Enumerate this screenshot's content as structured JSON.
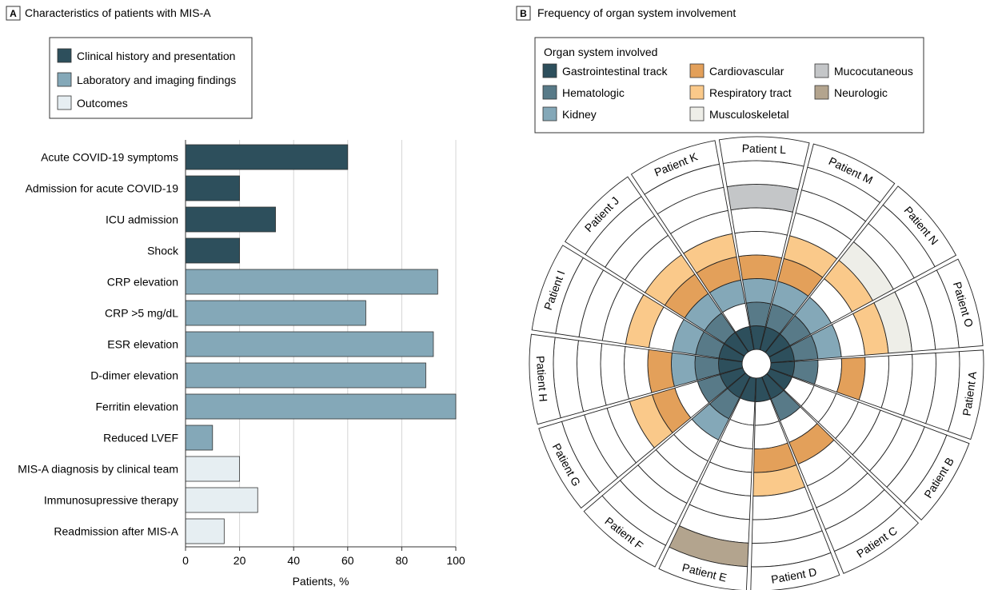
{
  "panel_a": {
    "letter": "A",
    "title": "Characteristics of patients with MIS-A",
    "legend": [
      {
        "label": "Clinical history and presentation",
        "color": "#2d4f5c"
      },
      {
        "label": "Laboratory and imaging findings",
        "color": "#84a8b8"
      },
      {
        "label": "Outcomes",
        "color": "#e6eef2"
      }
    ]
  },
  "panel_b": {
    "letter": "B",
    "title": "Frequency of organ system involvement",
    "legend_title": "Organ system involved"
  },
  "chart_data": [
    {
      "type": "bar",
      "orientation": "horizontal",
      "categories": [
        "Acute COVID-19 symptoms",
        "Admission for acute COVID-19",
        "ICU admission",
        "Shock",
        "CRP elevation",
        "CRP >5 mg/dL",
        "ESR elevation",
        "D-dimer elevation",
        "Ferritin elevation",
        "Reduced LVEF",
        "MIS-A diagnosis by  clinical team",
        "Immunosupressive therapy",
        "Readmission after MIS-A"
      ],
      "values": [
        60,
        20,
        33.3,
        20,
        93.3,
        66.7,
        91.7,
        88.9,
        100,
        10,
        20,
        26.7,
        14.3
      ],
      "groups": [
        0,
        0,
        0,
        0,
        1,
        1,
        1,
        1,
        1,
        1,
        2,
        2,
        2
      ],
      "xlabel": "Patients, %",
      "xlim": [
        0,
        100
      ],
      "xticks": [
        0,
        20,
        40,
        60,
        80,
        100
      ],
      "grid": true
    },
    {
      "type": "radial",
      "rings": [
        {
          "name": "Gastrointestinal track",
          "color": "#2d4f5c"
        },
        {
          "name": "Hematologic",
          "color": "#587a88"
        },
        {
          "name": "Kidney",
          "color": "#84a8b8"
        },
        {
          "name": "Cardiovascular",
          "color": "#e3a05a"
        },
        {
          "name": "Respiratory tract",
          "color": "#fac98a"
        },
        {
          "name": "Musculoskeletal",
          "color": "#eeeee8"
        },
        {
          "name": "Mucocutaneous",
          "color": "#c4c6c8"
        },
        {
          "name": "Neurologic",
          "color": "#b3a48e"
        }
      ],
      "patients": [
        {
          "label": "Patient A",
          "involved": [
            1,
            1,
            0,
            1,
            0,
            0,
            0,
            0
          ]
        },
        {
          "label": "Patient B",
          "involved": [
            1,
            0,
            0,
            0,
            0,
            0,
            0,
            0
          ]
        },
        {
          "label": "Patient C",
          "involved": [
            1,
            1,
            0,
            1,
            0,
            0,
            0,
            0
          ]
        },
        {
          "label": "Patient D",
          "involved": [
            1,
            0,
            0,
            1,
            1,
            0,
            0,
            0
          ]
        },
        {
          "label": "Patient E",
          "involved": [
            1,
            0,
            0,
            0,
            0,
            0,
            0,
            1
          ]
        },
        {
          "label": "Patient F",
          "involved": [
            1,
            1,
            1,
            0,
            0,
            0,
            0,
            0
          ]
        },
        {
          "label": "Patient G",
          "involved": [
            1,
            1,
            0,
            1,
            1,
            0,
            0,
            0
          ]
        },
        {
          "label": "Patient H",
          "involved": [
            1,
            1,
            1,
            1,
            0,
            0,
            0,
            0
          ]
        },
        {
          "label": "Patient I",
          "involved": [
            1,
            1,
            1,
            0,
            1,
            0,
            0,
            0
          ]
        },
        {
          "label": "Patient J",
          "involved": [
            1,
            1,
            1,
            1,
            1,
            0,
            0,
            0
          ]
        },
        {
          "label": "Patient K",
          "involved": [
            1,
            0,
            1,
            1,
            1,
            0,
            0,
            0
          ]
        },
        {
          "label": "Patient L",
          "involved": [
            1,
            1,
            1,
            1,
            0,
            0,
            1,
            0
          ]
        },
        {
          "label": "Patient M",
          "involved": [
            1,
            1,
            1,
            1,
            1,
            0,
            0,
            0
          ]
        },
        {
          "label": "Patient N",
          "involved": [
            1,
            1,
            1,
            0,
            1,
            1,
            0,
            0
          ]
        },
        {
          "label": "Patient O",
          "involved": [
            1,
            1,
            1,
            0,
            1,
            1,
            0,
            0
          ]
        }
      ]
    }
  ]
}
